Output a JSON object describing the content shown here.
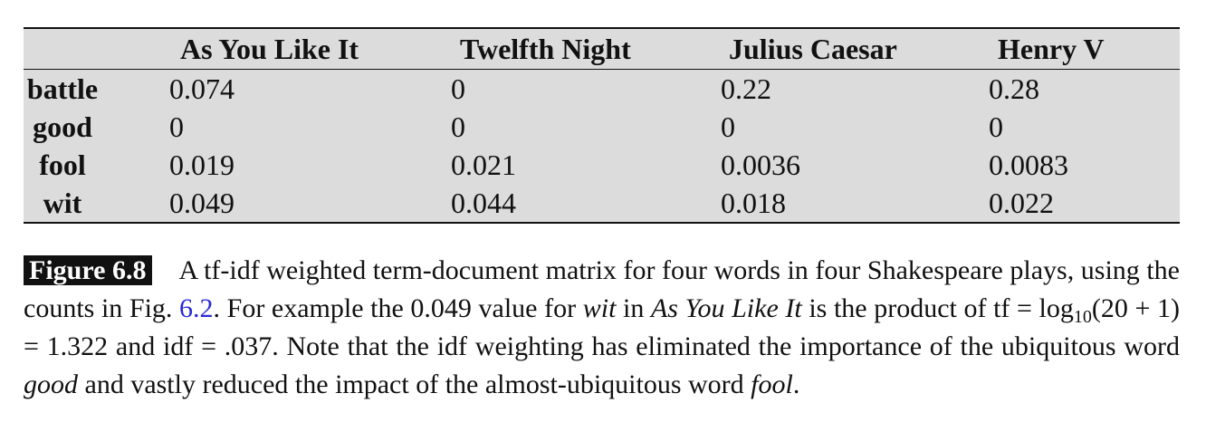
{
  "table": {
    "columns": [
      "As You Like It",
      "Twelfth Night",
      "Julius Caesar",
      "Henry V"
    ],
    "rows": [
      {
        "word": "battle",
        "values": [
          "0.074",
          "0",
          "0.22",
          "0.28"
        ]
      },
      {
        "word": "good",
        "values": [
          "0",
          "0",
          "0",
          "0"
        ]
      },
      {
        "word": "fool",
        "values": [
          "0.019",
          "0.021",
          "0.0036",
          "0.0083"
        ]
      },
      {
        "word": "wit",
        "values": [
          "0.049",
          "0.044",
          "0.018",
          "0.022"
        ]
      }
    ]
  },
  "caption": {
    "label": "Figure 6.8",
    "text_1": "A tf-idf weighted term-document matrix for four words in four Shakespeare plays, using the counts in Fig. ",
    "fig_ref": "6.2",
    "text_2": ". For example the 0.049 value for ",
    "em_1": "wit",
    "text_3": " in ",
    "em_2": "As You Like It",
    "text_4": " is the product of tf = log",
    "sub": "10",
    "text_5": "(20 + 1) = 1.322 and idf = .037. Note that the idf weighting has eliminated the importance of the ubiquitous word ",
    "em_3": "good",
    "text_6": " and vastly reduced the impact of the almost-ubiquitous word ",
    "em_4": "fool",
    "text_7": "."
  }
}
